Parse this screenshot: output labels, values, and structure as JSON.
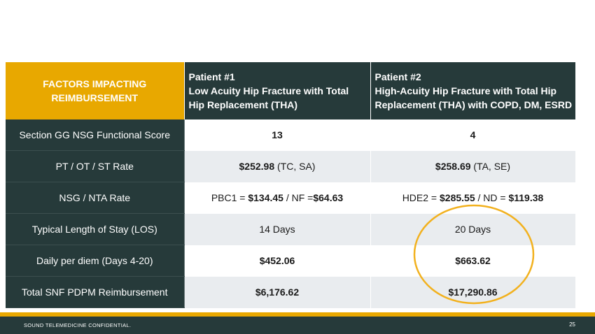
{
  "table": {
    "header": {
      "factor_line1": "FACTORS IMPACTING",
      "factor_line2": "REIMBURSEMENT",
      "patient1": {
        "title": "Patient #1",
        "line1": "Low Acuity Hip Fracture with Total",
        "line2": "Hip Replacement (THA)"
      },
      "patient2": {
        "title": "Patient #2",
        "line1": "High-Acuity Hip Fracture with Total Hip",
        "line2": "Replacement (THA) with COPD, DM, ESRD"
      }
    },
    "rows": [
      {
        "factor": "Section GG NSG Functional Score",
        "p1": {
          "bold": "13"
        },
        "p2": {
          "bold": "4"
        }
      },
      {
        "factor": "PT / OT / ST Rate",
        "p1": {
          "bold": "$252.98",
          "rest": " (TC, SA)"
        },
        "p2": {
          "bold": "$258.69",
          "rest": " (TA, SE)"
        }
      },
      {
        "factor": "NSG / NTA Rate",
        "p1": {
          "a": "PBC1 = ",
          "b": "$134.45",
          "c": " / NF =",
          "d": "$64.63"
        },
        "p2": {
          "a": "HDE2 = ",
          "b": "$285.55",
          "c": " / ND = ",
          "d": "$119.38"
        }
      },
      {
        "factor": "Typical Length of Stay (LOS)",
        "p1": {
          "plain": "14 Days"
        },
        "p2": {
          "plain": "20 Days"
        }
      },
      {
        "factor": "Daily per diem (Days 4-20)",
        "p1": {
          "bold": "$452.06"
        },
        "p2": {
          "bold": "$663.62"
        }
      },
      {
        "factor": "Total SNF PDPM Reimbursement",
        "p1": {
          "bold": "$6,176.62"
        },
        "p2": {
          "bold": "$17,290.86"
        }
      }
    ]
  },
  "footer": {
    "confidential": "SOUND TELEMEDICINE CONFIDENTIAL.",
    "page_number": "25"
  },
  "colors": {
    "accent_gold": "#E8A800",
    "dark_teal": "#263A3A",
    "row_shade": "#E9ECEF"
  }
}
